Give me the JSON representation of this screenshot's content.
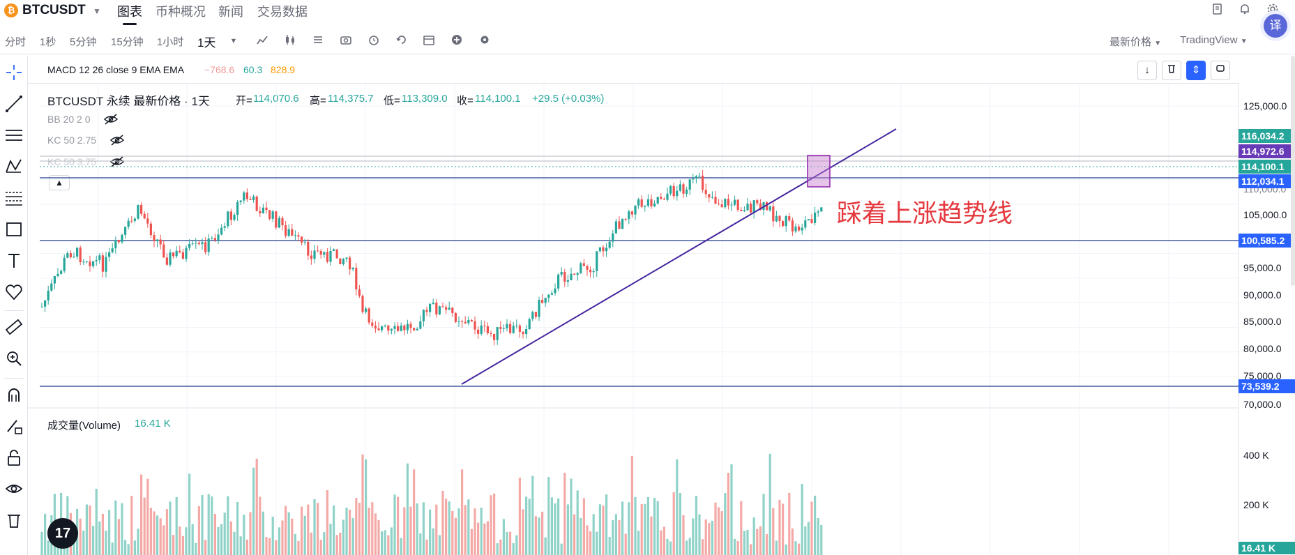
{
  "header": {
    "coin_glyph": "₿",
    "symbol": "BTCUSDT",
    "nav": [
      "图表",
      "币种概况",
      "新闻",
      "交易数据"
    ],
    "translate_label": "译"
  },
  "toolbar": {
    "timeframes": [
      "分时",
      "1秒",
      "5分钟",
      "15分钟",
      "1小时",
      "1天"
    ],
    "price_type": "最新价格",
    "chart_lib": "TradingView"
  },
  "macd": {
    "label": "MACD 12 26 close 9 EMA EMA",
    "values": [
      "−768.6",
      "60.3",
      "828.9"
    ]
  },
  "legend": {
    "title": "BTCUSDT 永续 最新价格 · 1天",
    "open_label": "开=",
    "open": "114,070.6",
    "high_label": "高=",
    "high": "114,375.7",
    "low_label": "低=",
    "low": "113,309.0",
    "close_label": "收=",
    "close": "114,100.1",
    "change": "+29.5 (+0.03%)",
    "indicators": [
      "BB 20 2 0",
      "KC 50 2.75",
      "KC 50 3.75"
    ]
  },
  "price_axis": {
    "ticks": [
      "125,000.0",
      "110,000.0",
      "105,000.0",
      "95,000.0",
      "90,000.0",
      "85,000.0",
      "80,000.0",
      "75,000.0",
      "70,000.0"
    ],
    "tags": [
      {
        "value": "116,034.2",
        "color": "#26a69a"
      },
      {
        "value": "114,972.6",
        "color": "#673ab7"
      },
      {
        "value": "114,100.1",
        "color": "#26a69a"
      },
      {
        "value": "112,034.1",
        "color": "#2962ff"
      },
      {
        "value": "100,585.2",
        "color": "#2962ff"
      },
      {
        "value": "73,539.2",
        "color": "#2962ff"
      }
    ]
  },
  "annotation": "踩着上涨趋势线",
  "volume": {
    "label": "成交量(Volume)",
    "value": "16.41 K",
    "ticks": [
      "400 K",
      "200 K"
    ],
    "tag": "16.41 K"
  },
  "logo": "17",
  "colors": {
    "up": "#26a69a",
    "down": "#ef5350",
    "accent": "#2962ff",
    "trend": "#673ab7",
    "annotation": "#e5393f"
  }
}
